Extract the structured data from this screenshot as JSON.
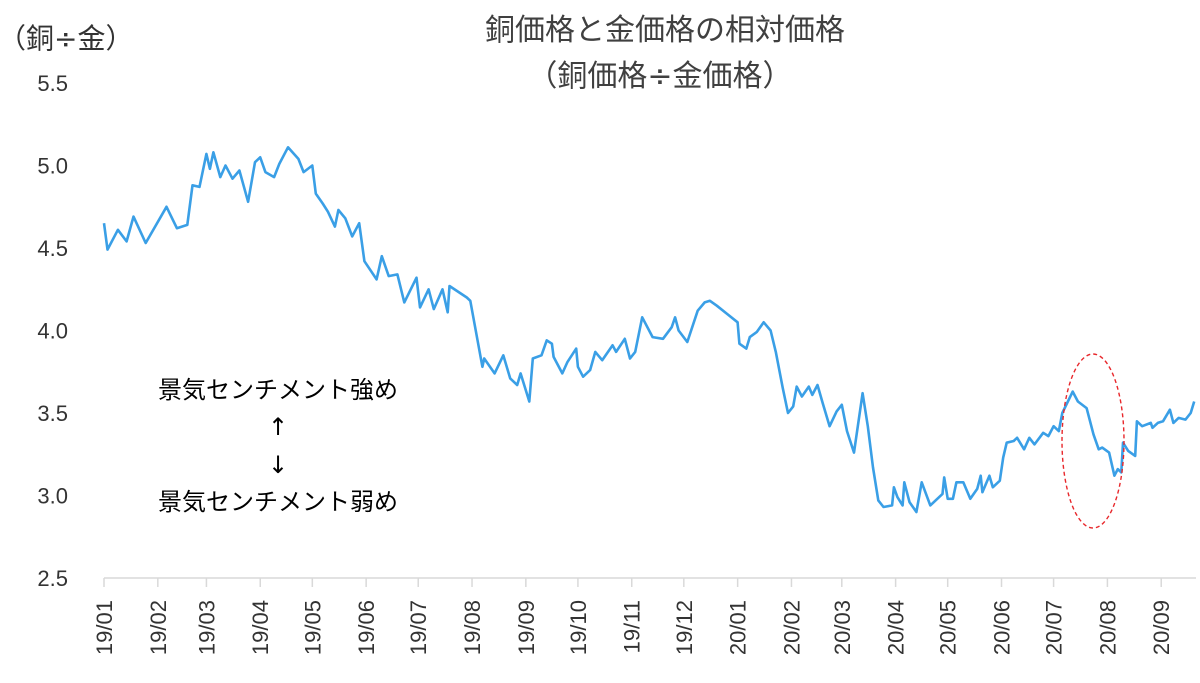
{
  "chart_data": {
    "type": "line",
    "title": "銅価格と金価格の相対価格",
    "subtitle": "（銅価格÷金価格）",
    "ylabel": "（銅÷金）",
    "xlabel": "",
    "ylim": [
      2.5,
      5.5
    ],
    "yticks": [
      "2.5",
      "3.0",
      "3.5",
      "4.0",
      "4.5",
      "5.0",
      "5.5"
    ],
    "xticks": [
      "19/01",
      "19/02",
      "19/03",
      "19/04",
      "19/05",
      "19/06",
      "19/07",
      "19/08",
      "19/09",
      "19/10",
      "19/11",
      "19/12",
      "20/01",
      "20/02",
      "20/03",
      "20/04",
      "20/05",
      "20/06",
      "20/07",
      "20/08",
      "20/09"
    ],
    "grid": false,
    "line_color": "#3a9fe6",
    "highlight_color": "#e8272b",
    "annotations": {
      "upper": "景気センチメント強め",
      "arrow_up": "↑",
      "arrow_down": "↓",
      "lower": "景気センチメント弱め"
    },
    "x": [
      "2019-01-01",
      "2019-01-03",
      "2019-01-09",
      "2019-01-14",
      "2019-01-18",
      "2019-01-25",
      "2019-02-06",
      "2019-02-12",
      "2019-02-18",
      "2019-02-21",
      "2019-02-25",
      "2019-03-01",
      "2019-03-03",
      "2019-03-05",
      "2019-03-09",
      "2019-03-12",
      "2019-03-16",
      "2019-03-20",
      "2019-03-25",
      "2019-03-29",
      "2019-04-01",
      "2019-04-04",
      "2019-04-09",
      "2019-04-12",
      "2019-04-17",
      "2019-04-23",
      "2019-04-26",
      "2019-05-01",
      "2019-05-03",
      "2019-05-07",
      "2019-05-10",
      "2019-05-14",
      "2019-05-16",
      "2019-05-20",
      "2019-05-24",
      "2019-05-28",
      "2019-05-31",
      "2019-06-07",
      "2019-06-10",
      "2019-06-14",
      "2019-06-19",
      "2019-06-23",
      "2019-06-30",
      "2019-07-02",
      "2019-07-07",
      "2019-07-10",
      "2019-07-15",
      "2019-07-18",
      "2019-07-19",
      "2019-07-29",
      "2019-07-31",
      "2019-08-07",
      "2019-08-08",
      "2019-08-14",
      "2019-08-19",
      "2019-08-23",
      "2019-08-27",
      "2019-08-29",
      "2019-09-03",
      "2019-09-05",
      "2019-09-10",
      "2019-09-13",
      "2019-09-16",
      "2019-09-17",
      "2019-09-22",
      "2019-09-25",
      "2019-09-30",
      "2019-10-01",
      "2019-10-04",
      "2019-10-08",
      "2019-10-11",
      "2019-10-15",
      "2019-10-21",
      "2019-10-23",
      "2019-10-28",
      "2019-10-31",
      "2019-11-03",
      "2019-11-07",
      "2019-11-13",
      "2019-11-19",
      "2019-11-24",
      "2019-11-26",
      "2019-11-28",
      "2019-12-03",
      "2019-12-09",
      "2019-12-13",
      "2019-12-16",
      "2019-12-20",
      "2019-12-26",
      "2020-01-01",
      "2020-01-02",
      "2020-01-06",
      "2020-01-08",
      "2020-01-12",
      "2020-01-16",
      "2020-01-20",
      "2020-01-23",
      "2020-01-27",
      "2020-01-30",
      "2020-02-02",
      "2020-02-04",
      "2020-02-07",
      "2020-02-11",
      "2020-02-13",
      "2020-02-16",
      "2020-02-19",
      "2020-02-23",
      "2020-02-27",
      "2020-03-01",
      "2020-03-04",
      "2020-03-08",
      "2020-03-13",
      "2020-03-16",
      "2020-03-19",
      "2020-03-22",
      "2020-03-25",
      "2020-03-30",
      "2020-03-31",
      "2020-04-02",
      "2020-04-05",
      "2020-04-06",
      "2020-04-09",
      "2020-04-13",
      "2020-04-16",
      "2020-04-21",
      "2020-04-28",
      "2020-04-29",
      "2020-05-01",
      "2020-05-04",
      "2020-05-06",
      "2020-05-10",
      "2020-05-14",
      "2020-05-18",
      "2020-05-20",
      "2020-05-21",
      "2020-05-25",
      "2020-05-27",
      "2020-05-31",
      "2020-06-02",
      "2020-06-04",
      "2020-06-08",
      "2020-06-10",
      "2020-06-14",
      "2020-06-17",
      "2020-06-20",
      "2020-06-25",
      "2020-06-28",
      "2020-07-01",
      "2020-07-04",
      "2020-07-06",
      "2020-07-12",
      "2020-07-15",
      "2020-07-20",
      "2020-07-24",
      "2020-07-27",
      "2020-07-29",
      "2020-08-02",
      "2020-08-05",
      "2020-08-07",
      "2020-08-09",
      "2020-08-10",
      "2020-08-13",
      "2020-08-17",
      "2020-08-18",
      "2020-08-21",
      "2020-08-26",
      "2020-08-27",
      "2020-08-30",
      "2020-09-02",
      "2020-09-06",
      "2020-09-08",
      "2020-09-11",
      "2020-09-15",
      "2020-09-18",
      "2020-09-20"
    ],
    "values": [
      4.65,
      4.49,
      4.61,
      4.54,
      4.69,
      4.53,
      4.75,
      4.62,
      4.64,
      4.88,
      4.87,
      5.07,
      4.98,
      5.08,
      4.93,
      5.0,
      4.92,
      4.97,
      4.78,
      5.02,
      5.05,
      4.96,
      4.93,
      5.01,
      5.11,
      5.04,
      4.96,
      5.0,
      4.83,
      4.77,
      4.72,
      4.63,
      4.73,
      4.68,
      4.57,
      4.65,
      4.42,
      4.31,
      4.45,
      4.33,
      4.34,
      4.17,
      4.32,
      4.14,
      4.25,
      4.13,
      4.25,
      4.11,
      4.27,
      4.2,
      4.18,
      3.78,
      3.83,
      3.74,
      3.85,
      3.71,
      3.67,
      3.74,
      3.57,
      3.83,
      3.85,
      3.94,
      3.92,
      3.84,
      3.74,
      3.81,
      3.89,
      3.78,
      3.72,
      3.76,
      3.87,
      3.82,
      3.91,
      3.87,
      3.95,
      3.83,
      3.87,
      4.08,
      3.96,
      3.95,
      4.02,
      4.08,
      4.0,
      3.93,
      4.12,
      4.17,
      4.18,
      4.15,
      4.1,
      4.05,
      3.92,
      3.89,
      3.96,
      3.99,
      4.05,
      4.0,
      3.87,
      3.65,
      3.5,
      3.54,
      3.66,
      3.6,
      3.66,
      3.61,
      3.67,
      3.56,
      3.42,
      3.51,
      3.55,
      3.39,
      3.26,
      3.62,
      3.42,
      3.17,
      2.97,
      2.93,
      2.94,
      3.05,
      2.99,
      2.94,
      3.08,
      2.96,
      2.9,
      3.08,
      2.94,
      3.01,
      3.11,
      2.98,
      2.98,
      3.08,
      3.08,
      2.98,
      3.04,
      3.12,
      3.02,
      3.12,
      3.05,
      3.09,
      3.23,
      3.32,
      3.33,
      3.35,
      3.28,
      3.35,
      3.31,
      3.38,
      3.36,
      3.42,
      3.39,
      3.5,
      3.63,
      3.57,
      3.53,
      3.37,
      3.28,
      3.29,
      3.26,
      3.12,
      3.16,
      3.14,
      3.32,
      3.27,
      3.24,
      3.45,
      3.42,
      3.44,
      3.41,
      3.44,
      3.45,
      3.52,
      3.44,
      3.47,
      3.46,
      3.5,
      3.57
    ]
  }
}
